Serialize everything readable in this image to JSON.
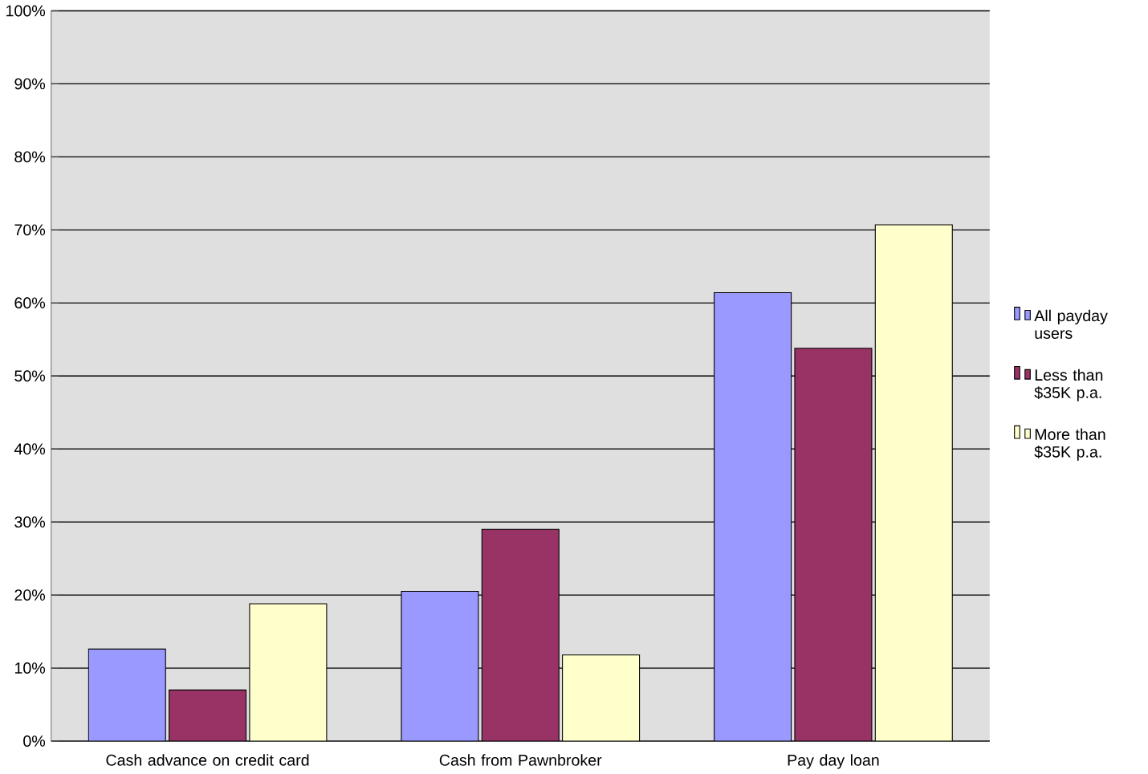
{
  "chart_data": {
    "type": "bar",
    "categories": [
      "Cash advance on credit card",
      "Cash from Pawnbroker",
      "Pay day loan"
    ],
    "series": [
      {
        "name": "All payday users",
        "color": "#9999ff",
        "values": [
          12.6,
          20.5,
          61.4
        ]
      },
      {
        "name": "Less than $35K p.a.",
        "color": "#993366",
        "values": [
          7.0,
          29.0,
          53.8
        ]
      },
      {
        "name": "More than $35K p.a.",
        "color": "#ffffcc",
        "values": [
          18.8,
          11.8,
          70.7
        ]
      }
    ],
    "ylim": [
      0,
      100
    ],
    "yticks": [
      {
        "value": 0,
        "label": "0%"
      },
      {
        "value": 10,
        "label": "10%"
      },
      {
        "value": 20,
        "label": "20%"
      },
      {
        "value": 30,
        "label": "30%"
      },
      {
        "value": 40,
        "label": "40%"
      },
      {
        "value": 50,
        "label": "50%"
      },
      {
        "value": 60,
        "label": "60%"
      },
      {
        "value": 70,
        "label": "70%"
      },
      {
        "value": 80,
        "label": "80%"
      },
      {
        "value": 90,
        "label": "90%"
      },
      {
        "value": 100,
        "label": "100%"
      }
    ],
    "grid": "y",
    "legend": "right"
  }
}
